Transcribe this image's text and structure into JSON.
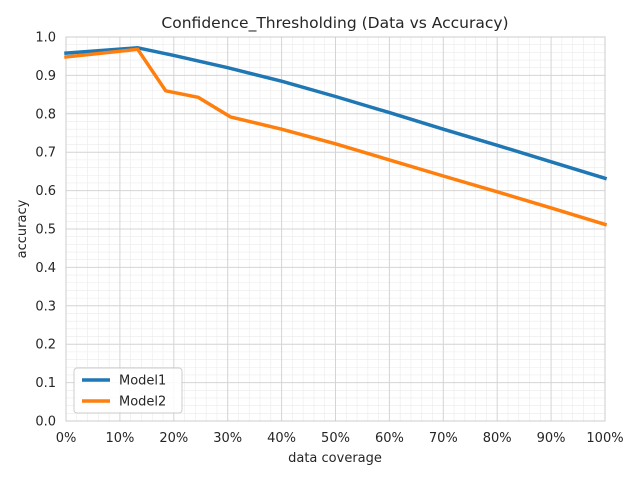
{
  "chart_data": {
    "type": "line",
    "title": "Confidence_Thresholding (Data vs Accuracy)",
    "xlabel": "data coverage",
    "ylabel": "accuracy",
    "xlim": [
      0,
      100
    ],
    "ylim": [
      0,
      1.0
    ],
    "x_ticks": [
      "0%",
      "10%",
      "20%",
      "30%",
      "40%",
      "50%",
      "60%",
      "70%",
      "80%",
      "90%",
      "100%"
    ],
    "x_tick_values": [
      0,
      10,
      20,
      30,
      40,
      50,
      60,
      70,
      80,
      90,
      100
    ],
    "y_ticks": [
      "0.0",
      "0.1",
      "0.2",
      "0.3",
      "0.4",
      "0.5",
      "0.6",
      "0.7",
      "0.8",
      "0.9",
      "1.0"
    ],
    "y_tick_values": [
      0,
      0.1,
      0.2,
      0.3,
      0.4,
      0.5,
      0.6,
      0.7,
      0.8,
      0.9,
      1.0
    ],
    "grid": true,
    "minor_grid": true,
    "legend_position": "lower-left",
    "series": [
      {
        "name": "Model1",
        "color": "#1f77b4",
        "x": [
          0,
          13.3,
          20,
          30,
          40,
          50,
          60,
          70,
          80,
          90,
          100
        ],
        "y": [
          0.958,
          0.972,
          0.952,
          0.92,
          0.885,
          0.845,
          0.803,
          0.76,
          0.718,
          0.675,
          0.632
        ]
      },
      {
        "name": "Model2",
        "color": "#ff7f0e",
        "x": [
          0,
          13.3,
          18.5,
          24.5,
          30.5,
          40,
          50,
          60,
          70,
          80,
          90,
          100
        ],
        "y": [
          0.948,
          0.968,
          0.86,
          0.843,
          0.792,
          0.76,
          0.722,
          0.68,
          0.638,
          0.597,
          0.555,
          0.512
        ]
      }
    ]
  }
}
